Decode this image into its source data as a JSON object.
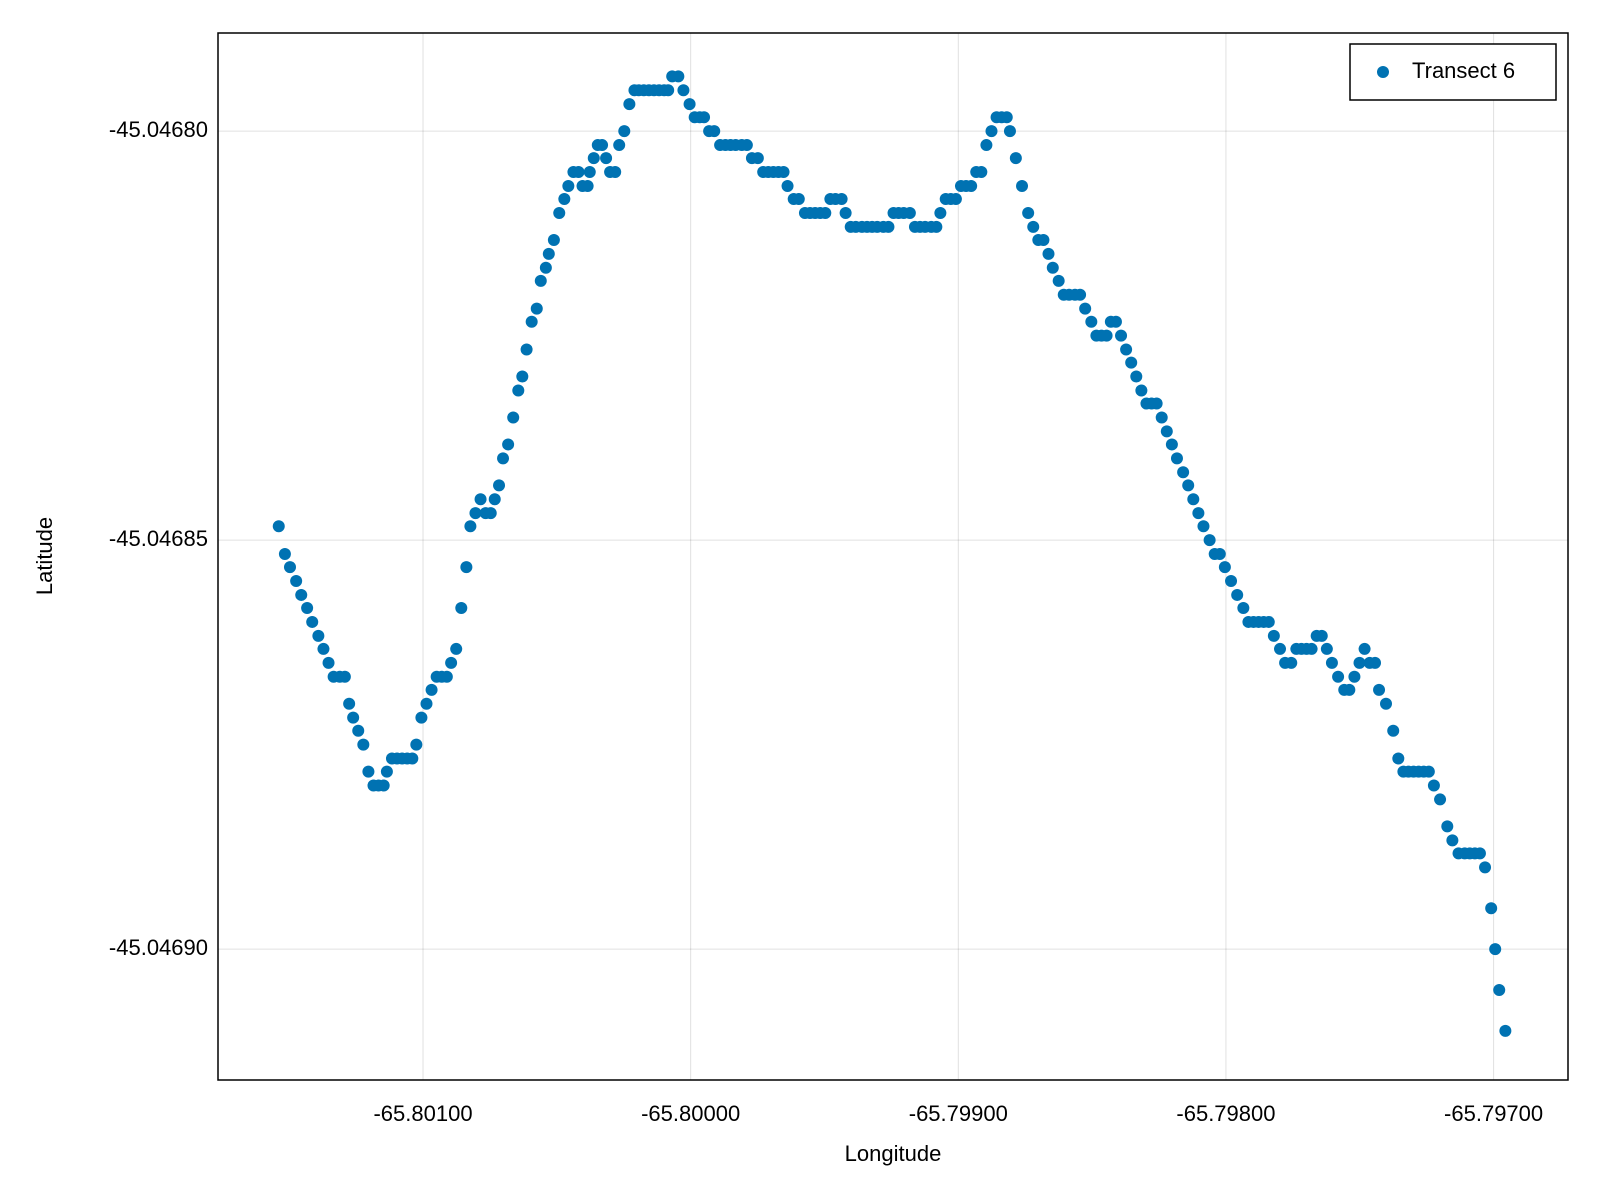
{
  "chart_data": {
    "type": "scatter",
    "xlabel": "Longitude",
    "ylabel": "Latitude",
    "xlim": [
      -65.801766,
      -65.796722
    ],
    "ylim": [
      -45.046916,
      -45.046788
    ],
    "xticks": [
      {
        "value": -65.801,
        "label": "-65.80100"
      },
      {
        "value": -65.8,
        "label": "-65.80000"
      },
      {
        "value": -65.799,
        "label": "-65.79900"
      },
      {
        "value": -65.798,
        "label": "-65.79800"
      },
      {
        "value": -65.797,
        "label": "-65.79700"
      }
    ],
    "yticks": [
      {
        "value": -45.0468,
        "label": "-45.04680"
      },
      {
        "value": -45.04685,
        "label": "-45.04685"
      },
      {
        "value": -45.0469,
        "label": "-45.04690"
      }
    ],
    "grid": true,
    "legend": "top-right",
    "x": [
      -65.801539,
      -65.801516,
      -65.801497,
      -65.801474,
      -65.801455,
      -65.801433,
      -65.801414,
      -65.801391,
      -65.801372,
      -65.801353,
      -65.801334,
      -65.801311,
      -65.801292,
      -65.801276,
      -65.801261,
      -65.801242,
      -65.801223,
      -65.801204,
      -65.801185,
      -65.801166,
      -65.801147,
      -65.801135,
      -65.801116,
      -65.801097,
      -65.801078,
      -65.801059,
      -65.80104,
      -65.801025,
      -65.801006,
      -65.800987,
      -65.800968,
      -65.800949,
      -65.80093,
      -65.800911,
      -65.800895,
      -65.800876,
      -65.800857,
      -65.800838,
      -65.800823,
      -65.800804,
      -65.800785,
      -65.800766,
      -65.800747,
      -65.800732,
      -65.800716,
      -65.800701,
      -65.800682,
      -65.800663,
      -65.800644,
      -65.800629,
      -65.800613,
      -65.800594,
      -65.800575,
      -65.80056,
      -65.800541,
      -65.80053,
      -65.800511,
      -65.800491,
      -65.800472,
      -65.800457,
      -65.800438,
      -65.800419,
      -65.800404,
      -65.800385,
      -65.800377,
      -65.800362,
      -65.800347,
      -65.800331,
      -65.800316,
      -65.800301,
      -65.800282,
      -65.800267,
      -65.800248,
      -65.800229,
      -65.80021,
      -65.800194,
      -65.800175,
      -65.800156,
      -65.800137,
      -65.800118,
      -65.800099,
      -65.800084,
      -65.800069,
      -65.800046,
      -65.800027,
      -65.800004,
      -65.799985,
      -65.799966,
      -65.79995,
      -65.799931,
      -65.799912,
      -65.79989,
      -65.79987,
      -65.799851,
      -65.799832,
      -65.799809,
      -65.79979,
      -65.799771,
      -65.799749,
      -65.799729,
      -65.79971,
      -65.799691,
      -65.799672,
      -65.799653,
      -65.799638,
      -65.799615,
      -65.799596,
      -65.799573,
      -65.799554,
      -65.799535,
      -65.799516,
      -65.799497,
      -65.799478,
      -65.799459,
      -65.799436,
      -65.799421,
      -65.799402,
      -65.799383,
      -65.79936,
      -65.799341,
      -65.799322,
      -65.799303,
      -65.79928,
      -65.799261,
      -65.799242,
      -65.799223,
      -65.799204,
      -65.799181,
      -65.799162,
      -65.799143,
      -65.799124,
      -65.799101,
      -65.799082,
      -65.799067,
      -65.799047,
      -65.799028,
      -65.799009,
      -65.79899,
      -65.798971,
      -65.798952,
      -65.798933,
      -65.798914,
      -65.798895,
      -65.798876,
      -65.798857,
      -65.798838,
      -65.798819,
      -65.798807,
      -65.798785,
      -65.798762,
      -65.798739,
      -65.79872,
      -65.798701,
      -65.798682,
      -65.798663,
      -65.798647,
      -65.798625,
      -65.798606,
      -65.798586,
      -65.798564,
      -65.798545,
      -65.798526,
      -65.798503,
      -65.798484,
      -65.798465,
      -65.798446,
      -65.79843,
      -65.798411,
      -65.798392,
      -65.798373,
      -65.798354,
      -65.798335,
      -65.798316,
      -65.798297,
      -65.798278,
      -65.798259,
      -65.79824,
      -65.798221,
      -65.798202,
      -65.798183,
      -65.79816,
      -65.798141,
      -65.798122,
      -65.798103,
      -65.798084,
      -65.798061,
      -65.798042,
      -65.798023,
      -65.798004,
      -65.797981,
      -65.797958,
      -65.797935,
      -65.797916,
      -65.797897,
      -65.797878,
      -65.797859,
      -65.79784,
      -65.797821,
      -65.797798,
      -65.797779,
      -65.797756,
      -65.797737,
      -65.797718,
      -65.797699,
      -65.79768,
      -65.797661,
      -65.797642,
      -65.797623,
      -65.797604,
      -65.797581,
      -65.797558,
      -65.797539,
      -65.79752,
      -65.797501,
      -65.797482,
      -65.797463,
      -65.797443,
      -65.797428,
      -65.797402,
      -65.797375,
      -65.797356,
      -65.797337,
      -65.797318,
      -65.797299,
      -65.79728,
      -65.797261,
      -65.797242,
      -65.797223,
      -65.7972,
      -65.797173,
      -65.797154,
      -65.797131,
      -65.797108,
      -65.797089,
      -65.79707,
      -65.797051,
      -65.797032,
      -65.797009,
      -65.796994,
      -65.796979,
      -65.796956
    ],
    "series": [
      {
        "name": "Transect 6",
        "color": "#0072b2",
        "values": [
          -45.0468483,
          -45.0468517,
          -45.0468533,
          -45.046855,
          -45.0468567,
          -45.0468583,
          -45.04686,
          -45.0468617,
          -45.0468633,
          -45.046865,
          -45.0468667,
          -45.0468667,
          -45.0468667,
          -45.04687,
          -45.0468717,
          -45.0468733,
          -45.046875,
          -45.0468783,
          -45.04688,
          -45.04688,
          -45.04688,
          -45.0468783,
          -45.0468767,
          -45.0468767,
          -45.0468767,
          -45.0468767,
          -45.0468767,
          -45.046875,
          -45.0468717,
          -45.04687,
          -45.0468683,
          -45.0468667,
          -45.0468667,
          -45.0468667,
          -45.046865,
          -45.0468633,
          -45.0468583,
          -45.0468533,
          -45.0468483,
          -45.0468467,
          -45.046845,
          -45.0468467,
          -45.0468467,
          -45.046845,
          -45.0468433,
          -45.04684,
          -45.0468383,
          -45.046835,
          -45.0468317,
          -45.04683,
          -45.0468267,
          -45.0468233,
          -45.0468217,
          -45.0468183,
          -45.0468167,
          -45.046815,
          -45.0468133,
          -45.04681,
          -45.0468083,
          -45.0468067,
          -45.046805,
          -45.046805,
          -45.0468067,
          -45.0468067,
          -45.046805,
          -45.0468033,
          -45.0468017,
          -45.0468017,
          -45.0468033,
          -45.046805,
          -45.046805,
          -45.0468017,
          -45.0468,
          -45.0467967,
          -45.046795,
          -45.046795,
          -45.046795,
          -45.046795,
          -45.046795,
          -45.046795,
          -45.046795,
          -45.046795,
          -45.0467933,
          -45.0467933,
          -45.046795,
          -45.0467967,
          -45.0467983,
          -45.0467983,
          -45.0467983,
          -45.0468,
          -45.0468,
          -45.0468017,
          -45.0468017,
          -45.0468017,
          -45.0468017,
          -45.0468017,
          -45.0468017,
          -45.0468033,
          -45.0468033,
          -45.046805,
          -45.046805,
          -45.046805,
          -45.046805,
          -45.046805,
          -45.0468067,
          -45.0468083,
          -45.0468083,
          -45.04681,
          -45.04681,
          -45.04681,
          -45.04681,
          -45.04681,
          -45.0468083,
          -45.0468083,
          -45.0468083,
          -45.04681,
          -45.0468117,
          -45.0468117,
          -45.0468117,
          -45.0468117,
          -45.0468117,
          -45.0468117,
          -45.0468117,
          -45.0468117,
          -45.04681,
          -45.04681,
          -45.04681,
          -45.04681,
          -45.0468117,
          -45.0468117,
          -45.0468117,
          -45.0468117,
          -45.0468117,
          -45.04681,
          -45.0468083,
          -45.0468083,
          -45.0468083,
          -45.0468067,
          -45.0468067,
          -45.0468067,
          -45.046805,
          -45.046805,
          -45.0468017,
          -45.0468,
          -45.0467983,
          -45.0467983,
          -45.0467983,
          -45.0468,
          -45.0468033,
          -45.0468067,
          -45.04681,
          -45.0468117,
          -45.0468133,
          -45.0468133,
          -45.046815,
          -45.0468167,
          -45.0468183,
          -45.04682,
          -45.04682,
          -45.04682,
          -45.04682,
          -45.0468217,
          -45.0468233,
          -45.046825,
          -45.046825,
          -45.046825,
          -45.0468233,
          -45.0468233,
          -45.046825,
          -45.0468267,
          -45.0468283,
          -45.04683,
          -45.0468317,
          -45.0468333,
          -45.0468333,
          -45.0468333,
          -45.046835,
          -45.0468367,
          -45.0468383,
          -45.04684,
          -45.0468417,
          -45.0468433,
          -45.046845,
          -45.0468467,
          -45.0468483,
          -45.04685,
          -45.0468517,
          -45.0468517,
          -45.0468533,
          -45.046855,
          -45.0468567,
          -45.0468583,
          -45.04686,
          -45.04686,
          -45.04686,
          -45.04686,
          -45.04686,
          -45.0468617,
          -45.0468633,
          -45.046865,
          -45.046865,
          -45.0468633,
          -45.0468633,
          -45.0468633,
          -45.0468633,
          -45.0468617,
          -45.0468617,
          -45.0468633,
          -45.046865,
          -45.0468667,
          -45.0468683,
          -45.0468683,
          -45.0468667,
          -45.046865,
          -45.0468633,
          -45.046865,
          -45.046865,
          -45.0468683,
          -45.04687,
          -45.0468733,
          -45.0468767,
          -45.0468783,
          -45.0468783,
          -45.0468783,
          -45.0468783,
          -45.0468783,
          -45.0468783,
          -45.04688,
          -45.0468817,
          -45.046885,
          -45.0468867,
          -45.0468883,
          -45.0468883,
          -45.0468883,
          -45.0468883,
          -45.0468883,
          -45.04689,
          -45.046895,
          -45.0469,
          -45.046905,
          -45.04691
        ]
      }
    ]
  }
}
